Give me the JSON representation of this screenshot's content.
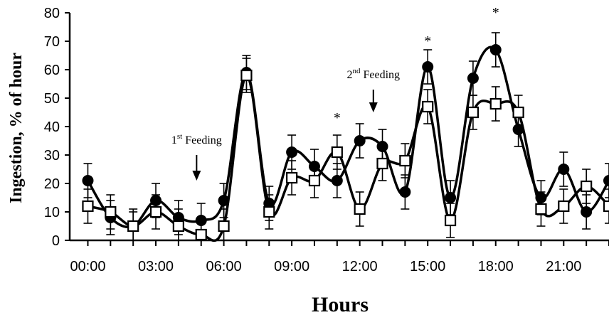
{
  "chart_data": {
    "type": "line",
    "xlabel": "Hours",
    "ylabel": "Ingestion, % of hour",
    "ylim": [
      0,
      80
    ],
    "yticks": [
      0,
      10,
      20,
      30,
      40,
      50,
      60,
      70,
      80
    ],
    "xlim": [
      -0.8,
      23.0
    ],
    "xtick_labels": [
      "00:00",
      "03:00",
      "06:00",
      "09:00",
      "12:00",
      "15:00",
      "18:00",
      "21:00"
    ],
    "xtick_positions": [
      0,
      3,
      6,
      9,
      12,
      15,
      18,
      21
    ],
    "x": [
      0,
      1,
      2,
      3,
      4,
      5,
      6,
      7,
      8,
      9,
      10,
      11,
      12,
      13,
      14,
      15,
      16,
      17,
      18,
      19,
      20,
      21,
      22,
      23
    ],
    "series": [
      {
        "marker": "filled-circle",
        "color": "#000000",
        "values": [
          21,
          8,
          5,
          14,
          8,
          7,
          14,
          59,
          13,
          31,
          26,
          21,
          35,
          33,
          17,
          61,
          15,
          57,
          67,
          39,
          15,
          25,
          10,
          21
        ],
        "errors": [
          6,
          6,
          5,
          6,
          6,
          6,
          6,
          6,
          6,
          6,
          6,
          6,
          6,
          6,
          6,
          6,
          6,
          6,
          6,
          6,
          6,
          6,
          6,
          6
        ]
      },
      {
        "marker": "open-square",
        "color": "#000000",
        "values": [
          12,
          10,
          5,
          10,
          5,
          2,
          5,
          58,
          10,
          22,
          21,
          31,
          11,
          27,
          28,
          47,
          7,
          45,
          48,
          45,
          11,
          12,
          19,
          12
        ],
        "errors": [
          6,
          6,
          6,
          6,
          6,
          6,
          6,
          6,
          6,
          6,
          6,
          6,
          6,
          6,
          6,
          6,
          6,
          6,
          6,
          6,
          6,
          6,
          6,
          6
        ]
      }
    ],
    "annotations": [
      {
        "x": 4.8,
        "y": 34,
        "text": "1",
        "sup": "st",
        "rest": " Feeding",
        "arrow_to_y": 21
      },
      {
        "x": 12.6,
        "y": 57,
        "text": "2",
        "sup": "nd",
        "rest": " Feeding",
        "arrow_to_y": 45
      }
    ],
    "significance": [
      {
        "x": 11,
        "y": 45,
        "text": "*"
      },
      {
        "x": 15,
        "y": 72,
        "text": "*"
      },
      {
        "x": 18,
        "y": 82,
        "text": "*"
      }
    ],
    "grid": false,
    "legend": "none"
  }
}
